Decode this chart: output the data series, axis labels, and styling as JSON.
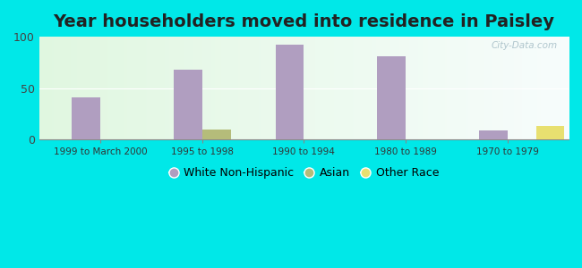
{
  "title": "Year householders moved into residence in Paisley",
  "categories": [
    "1999 to March 2000",
    "1995 to 1998",
    "1990 to 1994",
    "1980 to 1989",
    "1970 to 1979"
  ],
  "white_non_hispanic": [
    41,
    68,
    92,
    81,
    9
  ],
  "asian": [
    0,
    10,
    0,
    0,
    0
  ],
  "other_race": [
    0,
    0,
    0,
    0,
    13
  ],
  "white_color": "#b09ec0",
  "asian_color": "#b5bc7a",
  "other_race_color": "#e8e070",
  "bar_width": 0.28,
  "ylim": [
    0,
    100
  ],
  "yticks": [
    0,
    50,
    100
  ],
  "background_outer": "#00e8e8",
  "watermark": "City-Data.com",
  "title_fontsize": 14,
  "legend_fontsize": 9
}
